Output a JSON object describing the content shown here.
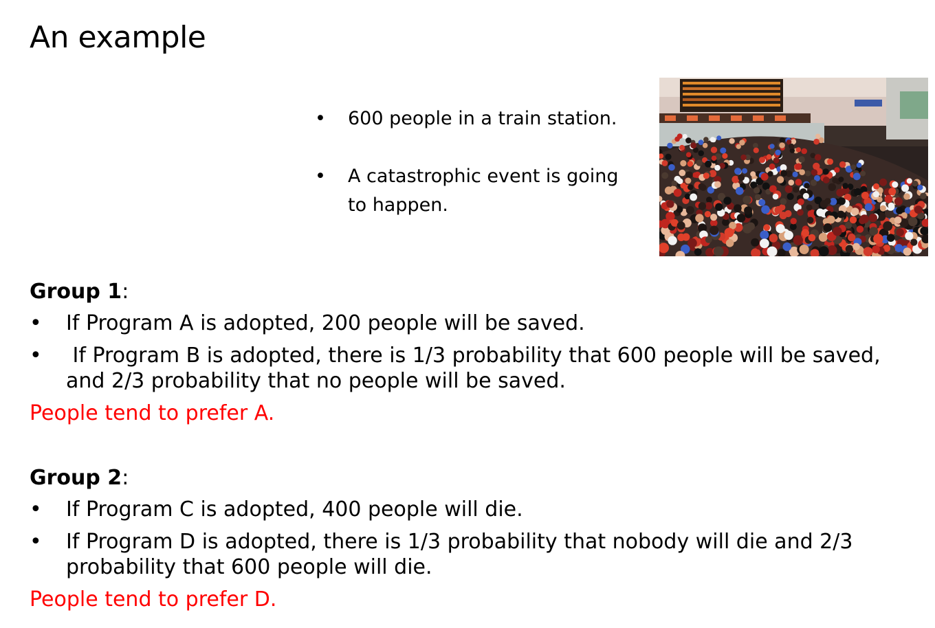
{
  "title": "An example",
  "intro": {
    "bullet_char": "•",
    "bullets": [
      "600 people in a train station.",
      "A catastrophic event is going to happen."
    ]
  },
  "image": {
    "subject": "crowd in a train station",
    "icon": "crowd-photo"
  },
  "groups": [
    {
      "label": "Group 1",
      "label_suffix": ":",
      "items": [
        "If Program A is adopted, 200 people will be saved.",
        " If Program B is adopted, there is 1/3 probability that 600 people will be saved, and 2/3 probability that no people will be saved."
      ],
      "conclusion": "People tend to prefer A."
    },
    {
      "label": "Group 2",
      "label_suffix": ":",
      "items": [
        "If Program C is adopted, 400 people will die.",
        "If Program D is adopted, there is 1/3 probability that nobody will die and 2/3 probability that 600 people will die."
      ],
      "conclusion": "People tend to prefer D."
    }
  ],
  "colors": {
    "text": "#000000",
    "conclusion": "#ff0000",
    "background": "#ffffff"
  }
}
